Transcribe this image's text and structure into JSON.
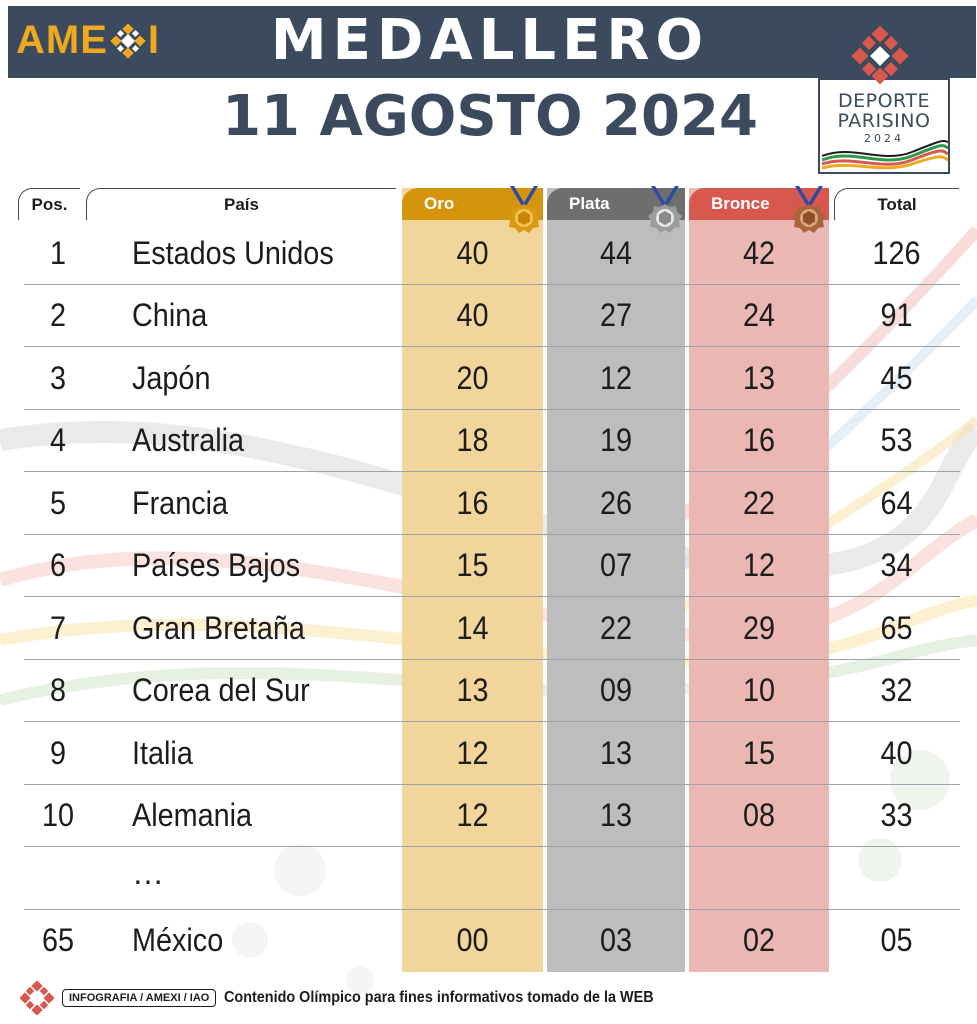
{
  "header": {
    "brand_left": "AME",
    "brand_right": "I",
    "title": "MEDALLERO",
    "date": "11 AGOSTO 2024"
  },
  "event_logo": {
    "line1": "DEPORTE",
    "line2": "PARISINO",
    "year": "2024"
  },
  "table": {
    "columns": {
      "pos": "Pos.",
      "country": "País",
      "gold": "Oro",
      "silver": "Plata",
      "bronze": "Bronce",
      "total": "Total"
    },
    "rows": [
      {
        "pos": "1",
        "country": "Estados Unidos",
        "gold": "40",
        "silver": "44",
        "bronze": "42",
        "total": "126"
      },
      {
        "pos": "2",
        "country": "China",
        "gold": "40",
        "silver": "27",
        "bronze": "24",
        "total": "91"
      },
      {
        "pos": "3",
        "country": "Japón",
        "gold": "20",
        "silver": "12",
        "bronze": "13",
        "total": "45"
      },
      {
        "pos": "4",
        "country": "Australia",
        "gold": "18",
        "silver": "19",
        "bronze": "16",
        "total": "53"
      },
      {
        "pos": "5",
        "country": "Francia",
        "gold": "16",
        "silver": "26",
        "bronze": "22",
        "total": "64"
      },
      {
        "pos": "6",
        "country": "Países Bajos",
        "gold": "15",
        "silver": "07",
        "bronze": "12",
        "total": "34"
      },
      {
        "pos": "7",
        "country": "Gran Bretaña",
        "gold": "14",
        "silver": "22",
        "bronze": "29",
        "total": "65"
      },
      {
        "pos": "8",
        "country": "Corea del Sur",
        "gold": "13",
        "silver": "09",
        "bronze": "10",
        "total": "32"
      },
      {
        "pos": "9",
        "country": "Italia",
        "gold": "12",
        "silver": "13",
        "bronze": "15",
        "total": "40"
      },
      {
        "pos": "10",
        "country": "Alemania",
        "gold": "12",
        "silver": "13",
        "bronze": "08",
        "total": "33"
      }
    ],
    "ellipsis": "…",
    "highlight_row": {
      "pos": "65",
      "country": "México",
      "gold": "00",
      "silver": "03",
      "bronze": "02",
      "total": "05"
    }
  },
  "footer": {
    "tag": "INFOGRAFIA / AMEXI / IAO",
    "note": "Contenido Olímpico para fines informativos tomado de la WEB"
  },
  "colors": {
    "header_bg": "#3b4a5c",
    "brand": "#f0a81e",
    "gold_header": "#d4940c",
    "gold_band": "#f2d59a",
    "silver_header": "#6e6e6e",
    "silver_band": "#bdbdbd",
    "bronze_header": "#d8584e",
    "bronze_band": "#eab7b2"
  },
  "icons": {
    "brand_mark": "amexi-knot-icon",
    "gold_medal": "gold-medal-icon",
    "silver_medal": "silver-medal-icon",
    "bronze_medal": "bronze-medal-icon"
  }
}
